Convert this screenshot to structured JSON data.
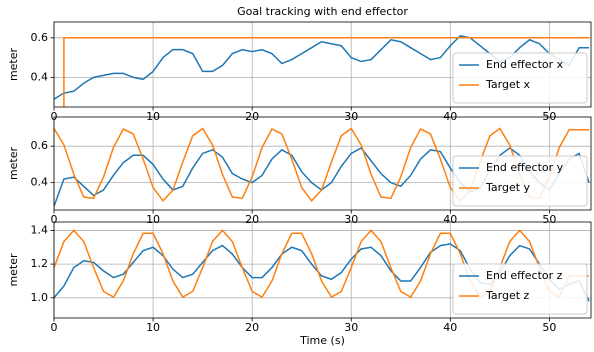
{
  "chart_data": [
    {
      "type": "line",
      "title": "Goal tracking with end effector",
      "ylabel": "meter",
      "x": [
        0,
        1,
        2,
        3,
        4,
        5,
        6,
        7,
        8,
        9,
        10,
        11,
        12,
        13,
        14,
        15,
        16,
        17,
        18,
        19,
        20,
        21,
        22,
        23,
        24,
        25,
        26,
        27,
        28,
        29,
        30,
        31,
        32,
        33,
        34,
        35,
        36,
        37,
        38,
        39,
        40,
        41,
        42,
        43,
        44,
        45,
        46,
        47,
        48,
        49,
        50,
        51,
        52,
        53,
        54
      ],
      "series": [
        {
          "name": "End effector x",
          "color": "#1f77b4",
          "values": [
            0.29,
            0.32,
            0.33,
            0.37,
            0.4,
            0.41,
            0.42,
            0.42,
            0.4,
            0.39,
            0.43,
            0.5,
            0.54,
            0.54,
            0.52,
            0.43,
            0.43,
            0.46,
            0.52,
            0.54,
            0.53,
            0.54,
            0.52,
            0.47,
            0.49,
            0.52,
            0.55,
            0.58,
            0.57,
            0.56,
            0.5,
            0.48,
            0.49,
            0.54,
            0.59,
            0.58,
            0.55,
            0.52,
            0.49,
            0.5,
            0.56,
            0.61,
            0.6,
            0.56,
            0.52,
            0.48,
            0.5,
            0.55,
            0.59,
            0.57,
            0.52,
            0.49,
            0.46,
            0.55,
            0.55
          ]
        },
        {
          "name": "Target x",
          "color": "#ff7f0e",
          "x": [
            1,
            1,
            54
          ],
          "values": [
            0,
            0.6,
            0.6
          ]
        }
      ],
      "xlim": [
        0,
        54.2
      ],
      "xticks": [
        0,
        10,
        20,
        30,
        40,
        50
      ],
      "ylim": [
        0.25,
        0.68
      ],
      "yticks": [
        0.4,
        0.6
      ],
      "grid": true,
      "legend": "lower right"
    },
    {
      "type": "line",
      "ylabel": "meter",
      "x": [
        0,
        1,
        2,
        3,
        4,
        5,
        6,
        7,
        8,
        9,
        10,
        11,
        12,
        13,
        14,
        15,
        16,
        17,
        18,
        19,
        20,
        21,
        22,
        23,
        24,
        25,
        26,
        27,
        28,
        29,
        30,
        31,
        32,
        33,
        34,
        35,
        36,
        37,
        38,
        39,
        40,
        41,
        42,
        43,
        44,
        45,
        46,
        47,
        48,
        49,
        50,
        51,
        52,
        53,
        54
      ],
      "series": [
        {
          "name": "End effector y",
          "color": "#1f77b4",
          "values": [
            0.27,
            0.42,
            0.43,
            0.38,
            0.33,
            0.36,
            0.44,
            0.51,
            0.55,
            0.55,
            0.5,
            0.42,
            0.36,
            0.38,
            0.48,
            0.56,
            0.58,
            0.54,
            0.45,
            0.42,
            0.4,
            0.44,
            0.53,
            0.58,
            0.55,
            0.46,
            0.4,
            0.36,
            0.4,
            0.49,
            0.56,
            0.59,
            0.52,
            0.45,
            0.4,
            0.38,
            0.44,
            0.53,
            0.58,
            0.57,
            0.48,
            0.4,
            0.35,
            0.37,
            0.47,
            0.55,
            0.59,
            0.55,
            0.46,
            0.4,
            0.36,
            0.45,
            0.53,
            0.56,
            0.4
          ]
        },
        {
          "name": "Target y",
          "color": "#ff7f0e",
          "values": [
            0.697,
            0.607,
            0.446,
            0.321,
            0.314,
            0.431,
            0.593,
            0.694,
            0.667,
            0.529,
            0.373,
            0.3,
            0.359,
            0.513,
            0.657,
            0.697,
            0.607,
            0.446,
            0.321,
            0.314,
            0.431,
            0.593,
            0.694,
            0.667,
            0.529,
            0.373,
            0.3,
            0.359,
            0.513,
            0.657,
            0.697,
            0.607,
            0.446,
            0.321,
            0.314,
            0.431,
            0.593,
            0.694,
            0.667,
            0.529,
            0.373,
            0.3,
            0.359,
            0.513,
            0.657,
            0.697,
            0.607,
            0.446,
            0.321,
            0.314,
            0.431,
            0.593,
            0.69,
            0.69,
            0.69
          ]
        }
      ],
      "xlim": [
        0,
        54.2
      ],
      "xticks": [
        0,
        10,
        20,
        30,
        40,
        50
      ],
      "ylim": [
        0.25,
        0.76
      ],
      "yticks": [
        0.4,
        0.6
      ],
      "grid": true,
      "legend": "lower right"
    },
    {
      "type": "line",
      "ylabel": "meter",
      "xlabel": "Time (s)",
      "x": [
        0,
        1,
        2,
        3,
        4,
        5,
        6,
        7,
        8,
        9,
        10,
        11,
        12,
        13,
        14,
        15,
        16,
        17,
        18,
        19,
        20,
        21,
        22,
        23,
        24,
        25,
        26,
        27,
        28,
        29,
        30,
        31,
        32,
        33,
        34,
        35,
        36,
        37,
        38,
        39,
        40,
        41,
        42,
        43,
        44,
        45,
        46,
        47,
        48,
        49,
        50,
        51,
        52,
        53,
        54
      ],
      "series": [
        {
          "name": "End effector z",
          "color": "#1f77b4",
          "values": [
            1.0,
            1.07,
            1.18,
            1.22,
            1.21,
            1.16,
            1.12,
            1.14,
            1.21,
            1.28,
            1.3,
            1.25,
            1.17,
            1.12,
            1.14,
            1.21,
            1.28,
            1.31,
            1.26,
            1.18,
            1.12,
            1.12,
            1.18,
            1.26,
            1.3,
            1.28,
            1.2,
            1.13,
            1.11,
            1.15,
            1.23,
            1.29,
            1.3,
            1.25,
            1.16,
            1.1,
            1.1,
            1.18,
            1.27,
            1.31,
            1.32,
            1.28,
            1.17,
            1.09,
            1.08,
            1.15,
            1.25,
            1.31,
            1.29,
            1.2,
            1.11,
            1.05,
            1.08,
            1.1,
            0.98
          ]
        },
        {
          "name": "Target z",
          "color": "#ff7f0e",
          "values": [
            1.179,
            1.334,
            1.4,
            1.334,
            1.179,
            1.038,
            1.004,
            1.1,
            1.262,
            1.383,
            1.383,
            1.262,
            1.1,
            1.004,
            1.038,
            1.179,
            1.334,
            1.4,
            1.334,
            1.179,
            1.038,
            1.004,
            1.1,
            1.262,
            1.383,
            1.383,
            1.262,
            1.1,
            1.004,
            1.038,
            1.179,
            1.334,
            1.4,
            1.334,
            1.179,
            1.038,
            1.004,
            1.1,
            1.262,
            1.383,
            1.383,
            1.262,
            1.1,
            1.004,
            1.038,
            1.179,
            1.334,
            1.4,
            1.334,
            1.179,
            1.038,
            1.004,
            1.13,
            1.13,
            1.13
          ]
        }
      ],
      "xlim": [
        0,
        54.2
      ],
      "xticks": [
        0,
        10,
        20,
        30,
        40,
        50
      ],
      "ylim": [
        0.88,
        1.45
      ],
      "yticks": [
        {
          "value": 1,
          "label": "1.0"
        },
        1.2,
        1.4
      ],
      "grid": true,
      "legend": "lower right"
    }
  ]
}
